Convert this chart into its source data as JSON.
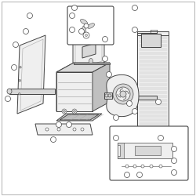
{
  "background_color": "#ffffff",
  "line_color": "#444444",
  "fill_white": "#ffffff",
  "fill_light": "#efefef",
  "fill_mid": "#d8d8d8",
  "fill_dark": "#c0c0c0",
  "fill_darker": "#a8a8a8",
  "callout_r": 3.5
}
